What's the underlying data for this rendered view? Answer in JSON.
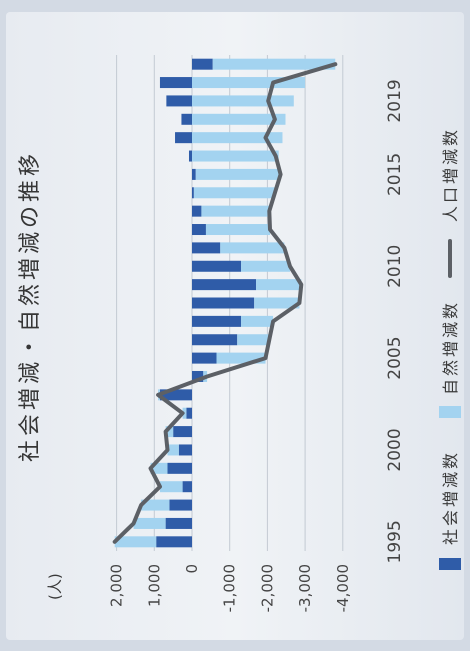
{
  "chart_data": {
    "type": "bar",
    "stacked": true,
    "title": "社会増減・自然増減の推移",
    "ylabel": "(人)",
    "ylim": [
      -4000,
      2000
    ],
    "yticks": [
      2000,
      1000,
      0,
      -1000,
      -2000,
      -3000,
      -4000
    ],
    "ytick_labels": [
      "2,000",
      "1,000",
      "0",
      "-1,000",
      "-2,000",
      "-3,000",
      "-4,000"
    ],
    "x": [
      1995,
      1996,
      1997,
      1998,
      1999,
      2000,
      2001,
      2002,
      2003,
      2004,
      2005,
      2006,
      2007,
      2008,
      2009,
      2010,
      2011,
      2012,
      2013,
      2014,
      2015,
      2016,
      2017,
      2018,
      2019,
      2020,
      2021
    ],
    "xtick_labels": [
      "1995",
      "2000",
      "2005",
      "2010",
      "2015",
      "2019"
    ],
    "grid": true,
    "legend_position": "bottom",
    "series": [
      {
        "name": "社会増減数",
        "type": "bar",
        "color": "#2f5ca8",
        "values": [
          950,
          700,
          600,
          250,
          650,
          350,
          500,
          150,
          850,
          -300,
          -650,
          -1200,
          -1300,
          -1650,
          -1700,
          -1300,
          -750,
          -370,
          -250,
          -50,
          -100,
          80,
          450,
          280,
          680,
          850,
          -550
        ]
      },
      {
        "name": "自然増減数",
        "type": "bar",
        "color": "#a3d3f0",
        "values": [
          1100,
          850,
          750,
          600,
          450,
          300,
          200,
          100,
          50,
          -100,
          -1300,
          -850,
          -850,
          -1200,
          -1200,
          -1300,
          -1700,
          -1700,
          -1800,
          -2150,
          -2250,
          -2300,
          -2400,
          -2480,
          -2700,
          -3000,
          -3250
        ]
      },
      {
        "name": "人口増減数",
        "type": "line",
        "color": "#5c6066",
        "values": [
          2050,
          1550,
          1350,
          850,
          1100,
          650,
          700,
          250,
          900,
          -400,
          -1950,
          -2050,
          -2150,
          -2850,
          -2900,
          -2600,
          -2450,
          -2070,
          -2050,
          -2200,
          -2350,
          -2220,
          -1950,
          -2200,
          -2020,
          -2150,
          -3800
        ]
      }
    ]
  }
}
